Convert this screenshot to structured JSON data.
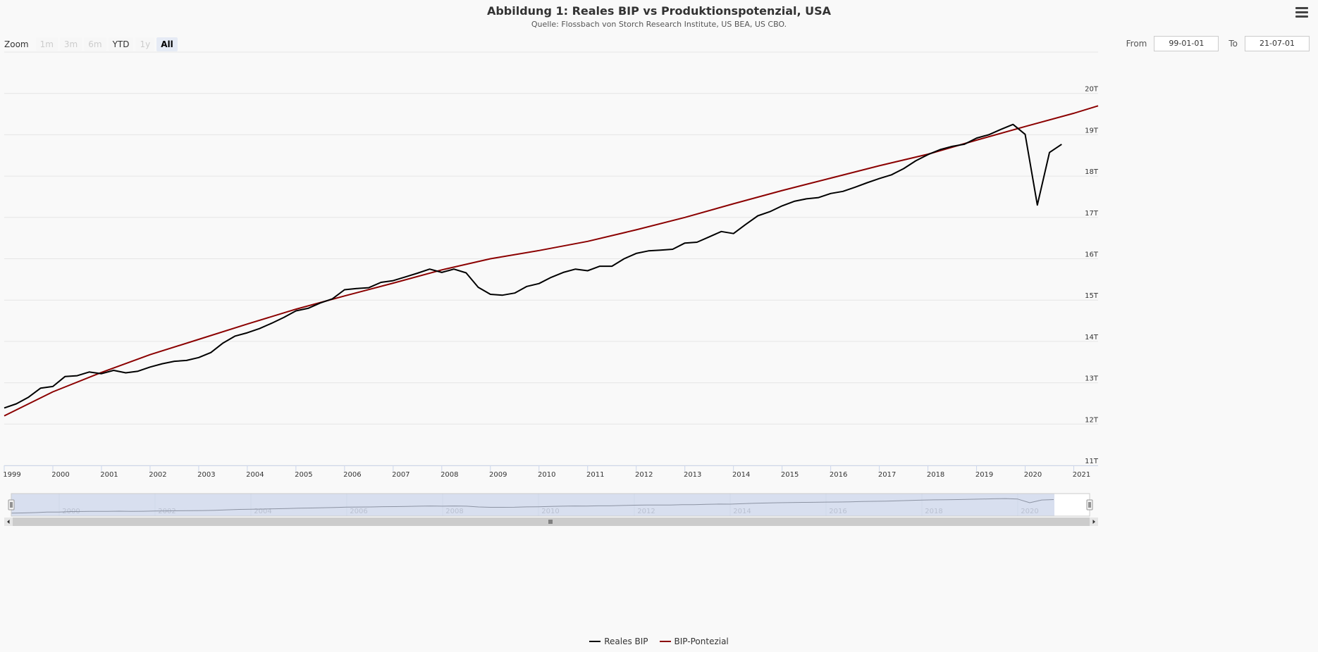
{
  "header": {
    "title": "Abbildung 1: Reales BIP vs Produktionspotenzial, USA",
    "subtitle": "Quelle: Flossbach von Storch Research Institute, US BEA, US CBO."
  },
  "zoom": {
    "label": "Zoom",
    "buttons": [
      {
        "label": "1m",
        "state": "disabled"
      },
      {
        "label": "3m",
        "state": "disabled"
      },
      {
        "label": "6m",
        "state": "disabled"
      },
      {
        "label": "YTD",
        "state": "enabled"
      },
      {
        "label": "1y",
        "state": "disabled"
      },
      {
        "label": "All",
        "state": "active"
      }
    ]
  },
  "range": {
    "from_label": "From",
    "from_value": "99-01-01",
    "to_label": "To",
    "to_value": "21-07-01"
  },
  "icons": {
    "menu": "hamburger-menu-icon"
  },
  "colors": {
    "reales_bip": "#000000",
    "bip_potenzial": "#8b0000",
    "navigator_mask": "#c8d2e8",
    "grid": "#e6e6e6"
  },
  "chart_data": {
    "type": "line",
    "title": "Abbildung 1: Reales BIP vs Produktionspotenzial, USA",
    "subtitle": "Quelle: Flossbach von Storch Research Institute, US BEA, US CBO.",
    "xlabel": "",
    "ylabel": "",
    "xlim": [
      1999.0,
      2021.5
    ],
    "ylim": [
      11,
      21
    ],
    "x_ticks": [
      "1999",
      "2000",
      "2001",
      "2002",
      "2003",
      "2004",
      "2005",
      "2006",
      "2007",
      "2008",
      "2009",
      "2010",
      "2011",
      "2012",
      "2013",
      "2014",
      "2015",
      "2016",
      "2017",
      "2018",
      "2019",
      "2020",
      "2021"
    ],
    "y_ticks": [
      "11T",
      "12T",
      "13T",
      "14T",
      "15T",
      "16T",
      "17T",
      "18T",
      "19T",
      "20T"
    ],
    "navigator_ticks": [
      "2000",
      "2002",
      "2004",
      "2006",
      "2008",
      "2010",
      "2012",
      "2014",
      "2016",
      "2018",
      "2020"
    ],
    "grid": true,
    "legend_position": "bottom-center",
    "series": [
      {
        "name": "Reales BIP",
        "color": "#000000",
        "x": [
          1999.0,
          1999.25,
          1999.5,
          1999.75,
          2000.0,
          2000.25,
          2000.5,
          2000.75,
          2001.0,
          2001.25,
          2001.5,
          2001.75,
          2002.0,
          2002.25,
          2002.5,
          2002.75,
          2003.0,
          2003.25,
          2003.5,
          2003.75,
          2004.0,
          2004.25,
          2004.5,
          2004.75,
          2005.0,
          2005.25,
          2005.5,
          2005.75,
          2006.0,
          2006.25,
          2006.5,
          2006.75,
          2007.0,
          2007.25,
          2007.5,
          2007.75,
          2008.0,
          2008.25,
          2008.5,
          2008.75,
          2009.0,
          2009.25,
          2009.5,
          2009.75,
          2010.0,
          2010.25,
          2010.5,
          2010.75,
          2011.0,
          2011.25,
          2011.5,
          2011.75,
          2012.0,
          2012.25,
          2012.5,
          2012.75,
          2013.0,
          2013.25,
          2013.5,
          2013.75,
          2014.0,
          2014.25,
          2014.5,
          2014.75,
          2015.0,
          2015.25,
          2015.5,
          2015.75,
          2016.0,
          2016.25,
          2016.5,
          2016.75,
          2017.0,
          2017.25,
          2017.5,
          2017.75,
          2018.0,
          2018.25,
          2018.5,
          2018.75,
          2019.0,
          2019.25,
          2019.5,
          2019.75,
          2020.0,
          2020.25,
          2020.5,
          2020.75
        ],
        "values": [
          12.39,
          12.49,
          12.65,
          12.87,
          12.91,
          13.15,
          13.17,
          13.26,
          13.22,
          13.3,
          13.24,
          13.28,
          13.38,
          13.46,
          13.52,
          13.54,
          13.61,
          13.73,
          13.96,
          14.13,
          14.21,
          14.31,
          14.44,
          14.58,
          14.74,
          14.8,
          14.93,
          15.03,
          15.25,
          15.28,
          15.3,
          15.43,
          15.47,
          15.56,
          15.65,
          15.75,
          15.67,
          15.75,
          15.66,
          15.31,
          15.14,
          15.12,
          15.17,
          15.33,
          15.4,
          15.55,
          15.67,
          15.75,
          15.71,
          15.82,
          15.82,
          16.0,
          16.13,
          16.19,
          16.21,
          16.23,
          16.38,
          16.4,
          16.53,
          16.66,
          16.61,
          16.83,
          17.04,
          17.14,
          17.28,
          17.39,
          17.45,
          17.48,
          17.58,
          17.63,
          17.73,
          17.84,
          17.94,
          18.03,
          18.18,
          18.37,
          18.52,
          18.64,
          18.72,
          18.77,
          18.92,
          19.0,
          19.13,
          19.25,
          19.01,
          17.3,
          18.57,
          18.77
        ]
      },
      {
        "name": "BIP-Pontezial",
        "color": "#8b0000",
        "x": [
          1999.0,
          2000.0,
          2001.0,
          2002.0,
          2003.0,
          2004.0,
          2005.0,
          2006.0,
          2007.0,
          2008.0,
          2009.0,
          2010.0,
          2011.0,
          2012.0,
          2013.0,
          2014.0,
          2015.0,
          2016.0,
          2017.0,
          2018.0,
          2019.0,
          2020.0,
          2021.0,
          2021.5
        ],
        "values": [
          12.2,
          12.78,
          13.25,
          13.68,
          14.05,
          14.42,
          14.78,
          15.1,
          15.41,
          15.73,
          16.0,
          16.2,
          16.42,
          16.7,
          17.0,
          17.33,
          17.65,
          17.95,
          18.25,
          18.53,
          18.87,
          19.2,
          19.52,
          19.7
        ]
      }
    ]
  }
}
